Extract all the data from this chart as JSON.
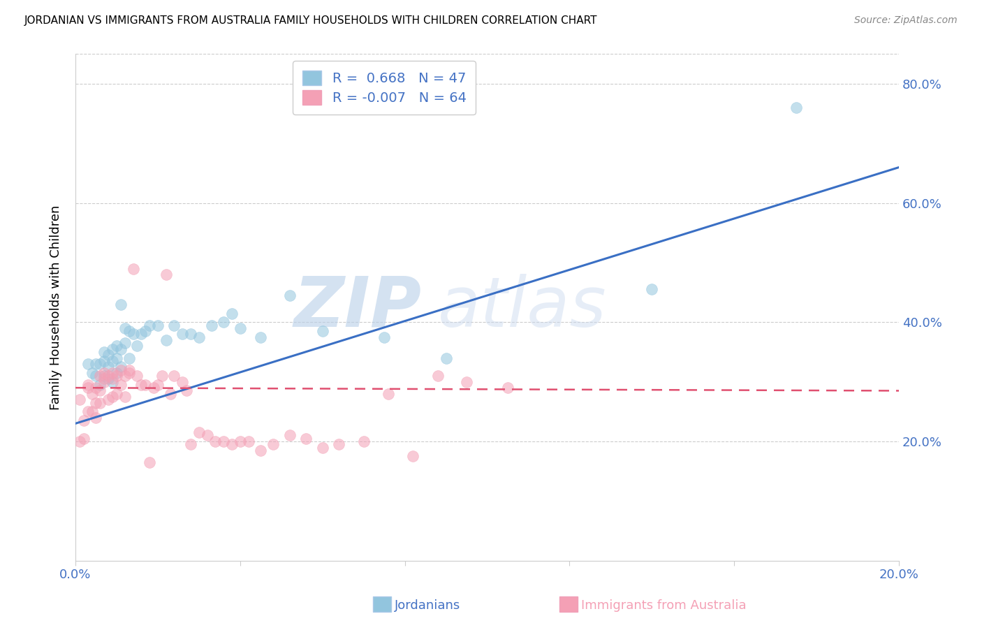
{
  "title": "JORDANIAN VS IMMIGRANTS FROM AUSTRALIA FAMILY HOUSEHOLDS WITH CHILDREN CORRELATION CHART",
  "source": "Source: ZipAtlas.com",
  "ylabel": "Family Households with Children",
  "xlabel_jordanian": "Jordanians",
  "xlabel_australia": "Immigrants from Australia",
  "xmin": 0.0,
  "xmax": 0.2,
  "ymin": 0.0,
  "ymax": 0.85,
  "yticks": [
    0.2,
    0.4,
    0.6,
    0.8
  ],
  "ytick_labels": [
    "20.0%",
    "40.0%",
    "60.0%",
    "80.0%"
  ],
  "xtick_vals": [
    0.0,
    0.04,
    0.08,
    0.12,
    0.16,
    0.2
  ],
  "xtick_labels": [
    "0.0%",
    "",
    "",
    "",
    "",
    "20.0%"
  ],
  "legend_r1": "R =  0.668",
  "legend_n1": "N = 47",
  "legend_r2": "R = -0.007",
  "legend_n2": "N = 64",
  "blue_color": "#92c5de",
  "pink_color": "#f4a0b5",
  "line_blue": "#3a6fc4",
  "line_pink": "#e05070",
  "axis_label_color": "#4472c4",
  "tick_label_color": "#4472c4",
  "watermark_zip": "ZIP",
  "watermark_atlas": "atlas",
  "blue_scatter_x": [
    0.003,
    0.004,
    0.005,
    0.005,
    0.006,
    0.006,
    0.007,
    0.007,
    0.007,
    0.008,
    0.008,
    0.008,
    0.009,
    0.009,
    0.009,
    0.01,
    0.01,
    0.01,
    0.011,
    0.011,
    0.011,
    0.012,
    0.012,
    0.013,
    0.013,
    0.014,
    0.015,
    0.016,
    0.017,
    0.018,
    0.02,
    0.022,
    0.024,
    0.026,
    0.028,
    0.03,
    0.033,
    0.036,
    0.038,
    0.04,
    0.045,
    0.052,
    0.06,
    0.075,
    0.09,
    0.14,
    0.175
  ],
  "blue_scatter_y": [
    0.33,
    0.315,
    0.31,
    0.33,
    0.295,
    0.33,
    0.31,
    0.335,
    0.35,
    0.305,
    0.325,
    0.345,
    0.3,
    0.335,
    0.355,
    0.315,
    0.34,
    0.36,
    0.325,
    0.355,
    0.43,
    0.365,
    0.39,
    0.34,
    0.385,
    0.38,
    0.36,
    0.38,
    0.385,
    0.395,
    0.395,
    0.37,
    0.395,
    0.38,
    0.38,
    0.375,
    0.395,
    0.4,
    0.415,
    0.39,
    0.375,
    0.445,
    0.385,
    0.375,
    0.34,
    0.455,
    0.76
  ],
  "pink_scatter_x": [
    0.001,
    0.001,
    0.002,
    0.002,
    0.003,
    0.003,
    0.003,
    0.004,
    0.004,
    0.005,
    0.005,
    0.005,
    0.006,
    0.006,
    0.006,
    0.007,
    0.007,
    0.007,
    0.008,
    0.008,
    0.009,
    0.009,
    0.009,
    0.01,
    0.01,
    0.011,
    0.011,
    0.012,
    0.012,
    0.013,
    0.013,
    0.014,
    0.015,
    0.016,
    0.017,
    0.018,
    0.019,
    0.02,
    0.021,
    0.022,
    0.023,
    0.024,
    0.026,
    0.027,
    0.028,
    0.03,
    0.032,
    0.034,
    0.036,
    0.038,
    0.04,
    0.042,
    0.045,
    0.048,
    0.052,
    0.056,
    0.06,
    0.064,
    0.07,
    0.076,
    0.082,
    0.088,
    0.095,
    0.105
  ],
  "pink_scatter_y": [
    0.27,
    0.2,
    0.205,
    0.235,
    0.295,
    0.29,
    0.25,
    0.25,
    0.28,
    0.24,
    0.265,
    0.29,
    0.265,
    0.285,
    0.31,
    0.315,
    0.3,
    0.305,
    0.27,
    0.31,
    0.275,
    0.305,
    0.315,
    0.28,
    0.31,
    0.295,
    0.32,
    0.275,
    0.31,
    0.315,
    0.32,
    0.49,
    0.31,
    0.295,
    0.295,
    0.165,
    0.29,
    0.295,
    0.31,
    0.48,
    0.28,
    0.31,
    0.3,
    0.285,
    0.195,
    0.215,
    0.21,
    0.2,
    0.2,
    0.195,
    0.2,
    0.2,
    0.185,
    0.195,
    0.21,
    0.205,
    0.19,
    0.195,
    0.2,
    0.28,
    0.175,
    0.31,
    0.3,
    0.29
  ],
  "blue_line_x": [
    0.0,
    0.2
  ],
  "blue_line_y": [
    0.23,
    0.66
  ],
  "pink_line_x": [
    0.0,
    0.2
  ],
  "pink_line_y": [
    0.29,
    0.285
  ]
}
